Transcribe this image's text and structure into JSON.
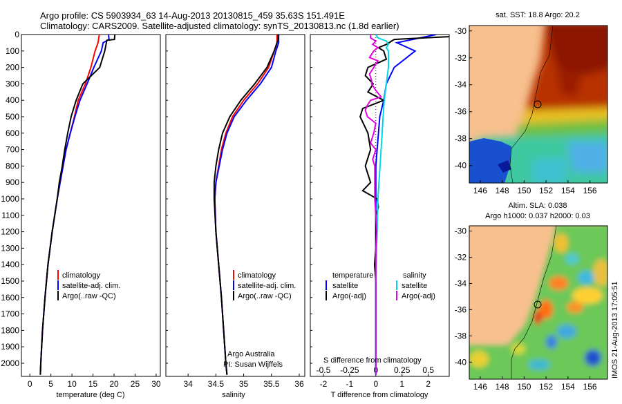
{
  "title_line1": "Argo profile: CS 5903934_63 14-Aug-2013 20130815_459 35.63S 151.491E",
  "title_line2": "Climatology: CARS2009. Satellite-adjusted climatology: synTS_20130813.nc (1.8d earlier)",
  "watermark": "IMOS 21-Aug-2013 17:05:51",
  "map_sst_title": "sat. SST: 18.8 Argo: 20.2",
  "map_sla_title1": "Altim. SLA: 0.038",
  "map_sla_title2": "Argo h1000: 0.037 h2000: 0.03",
  "colors": {
    "climatology": "#ff0000",
    "satellite": "#0000ff",
    "argo": "#000000",
    "salinity_satellite": "#00d8e8",
    "salinity_argo": "#e000e0",
    "land": "#f7c08e"
  },
  "maps": {
    "x_ticks": [
      "146",
      "148",
      "150",
      "152",
      "154",
      "156"
    ],
    "y_ticks": [
      "-30",
      "-32",
      "-34",
      "-36",
      "-38",
      "-40"
    ],
    "argo_position": {
      "lon": 151.491,
      "lat": -35.63
    }
  },
  "chart_data": [
    {
      "type": "line",
      "xlabel": "temperature (deg C)",
      "ylabel": "",
      "xlim": [
        -2,
        31
      ],
      "ylim": [
        2080,
        0
      ],
      "x_ticks": [
        "0",
        "5",
        "10",
        "15",
        "20",
        "25",
        "30"
      ],
      "y_ticks": [
        "0",
        "100",
        "200",
        "300",
        "400",
        "500",
        "600",
        "700",
        "800",
        "900",
        "1000",
        "1100",
        "1200",
        "1300",
        "1400",
        "1500",
        "1600",
        "1700",
        "1800",
        "1900",
        "2000"
      ],
      "legend": [
        "climatology",
        "satellite-adj. clim.",
        "Argo(..raw -QC)"
      ],
      "series": [
        {
          "name": "climatology",
          "depth": [
            0,
            50,
            100,
            200,
            300,
            400,
            500,
            600,
            700,
            800,
            900,
            1000,
            1200,
            1400,
            1600,
            1800,
            2000,
            2070
          ],
          "values": [
            16.5,
            16.2,
            15.5,
            14.5,
            13.2,
            11.5,
            10.6,
            9.6,
            8.6,
            7.9,
            7.2,
            6.5,
            5.3,
            4.3,
            3.6,
            3.0,
            2.6,
            2.5
          ]
        },
        {
          "name": "satellite-adj. clim.",
          "depth": [
            0,
            30,
            50,
            100,
            200,
            300,
            400,
            500,
            600,
            700,
            800,
            900,
            1000,
            1200,
            1400,
            1600,
            1800,
            2000,
            2070
          ],
          "values": [
            18.7,
            18.8,
            17.4,
            17.0,
            15.2,
            13.6,
            11.9,
            10.7,
            9.6,
            8.6,
            7.9,
            7.2,
            6.5,
            5.3,
            4.3,
            3.6,
            3.0,
            2.6,
            2.5
          ]
        },
        {
          "name": "Argo(..raw -QC)",
          "depth": [
            0,
            30,
            35,
            100,
            200,
            300,
            400,
            500,
            600,
            700,
            800,
            900,
            1000,
            1200,
            1400,
            1600,
            1800,
            2000,
            2070
          ],
          "values": [
            20.2,
            20.1,
            18.3,
            17.8,
            16.6,
            12.6,
            11.0,
            9.8,
            9.0,
            8.3,
            7.7,
            7.0,
            6.5,
            5.3,
            4.3,
            3.6,
            3.0,
            2.6,
            2.5
          ]
        }
      ]
    },
    {
      "type": "line",
      "xlabel": "salinity",
      "xlim": [
        33.6,
        36.1
      ],
      "ylim": [
        2080,
        0
      ],
      "x_ticks": [
        "34",
        "34.5",
        "35",
        "35.5",
        "36"
      ],
      "legend": [
        "climatology",
        "satellite-adj. clim.",
        "Argo(..raw -QC)"
      ],
      "annotation": [
        "Argo Australia",
        "PI: Susan Wijffels"
      ],
      "series": [
        {
          "name": "climatology",
          "depth": [
            0,
            50,
            100,
            200,
            300,
            400,
            500,
            600,
            700,
            800,
            900,
            1000,
            1200,
            1400,
            1600,
            1800,
            2000,
            2070
          ],
          "values": [
            35.6,
            35.6,
            35.55,
            35.45,
            35.25,
            35.0,
            34.8,
            34.68,
            34.6,
            34.55,
            34.5,
            34.48,
            34.5,
            34.55,
            34.6,
            34.64,
            34.68,
            34.7
          ]
        },
        {
          "name": "satellite-adj. clim.",
          "depth": [
            0,
            50,
            100,
            200,
            300,
            400,
            500,
            600,
            700,
            800,
            900,
            1000,
            1200,
            1400,
            1600,
            1800,
            2000,
            2070
          ],
          "values": [
            35.63,
            35.63,
            35.58,
            35.5,
            35.3,
            35.05,
            34.83,
            34.7,
            34.62,
            34.56,
            34.5,
            34.48,
            34.5,
            34.55,
            34.6,
            34.64,
            34.68,
            34.7
          ]
        },
        {
          "name": "Argo(..raw -QC)",
          "depth": [
            0,
            30,
            50,
            100,
            200,
            300,
            400,
            500,
            600,
            700,
            800,
            900,
            1000,
            1200,
            1400,
            1600,
            1800,
            2000,
            2070
          ],
          "values": [
            35.62,
            35.62,
            35.6,
            35.55,
            35.42,
            35.2,
            34.95,
            34.75,
            34.62,
            34.55,
            34.5,
            34.47,
            34.47,
            34.5,
            34.55,
            34.6,
            34.64,
            34.68,
            34.7
          ]
        }
      ]
    },
    {
      "type": "line",
      "xlabel": "T difference from climatology",
      "xlabel_top": "S difference from climatology",
      "xlim": [
        -2.5,
        2.8
      ],
      "ylim": [
        2080,
        0
      ],
      "x_ticks": [
        "-2",
        "-1",
        "0",
        "1",
        "2"
      ],
      "s_ticks": [
        "-0.5",
        "-0.25",
        "0",
        "0.25",
        "0.5"
      ],
      "legend": {
        "temperature": [
          "temperature",
          "satellite",
          "Argo(-adj)"
        ],
        "salinity": [
          "salinity",
          "satellite",
          "Argo(-adj)"
        ]
      },
      "series": [
        {
          "name": "temperature satellite",
          "depth": [
            0,
            50,
            100,
            200,
            300,
            400,
            500,
            600,
            700,
            800,
            1000,
            1200,
            1500,
            2000,
            2070
          ],
          "values": [
            2.3,
            0.8,
            1.5,
            0.7,
            0.4,
            0.3,
            0.15,
            0.1,
            0.05,
            0.0,
            0.0,
            0.0,
            0.0,
            0.0,
            0.0
          ]
        },
        {
          "name": "temperature Argo(-adj)",
          "depth": [
            0,
            10,
            15,
            20,
            25,
            30,
            40,
            60,
            80,
            100,
            150,
            200,
            250,
            300,
            350,
            400,
            450,
            500,
            600,
            700,
            800,
            900,
            950,
            1000,
            1050,
            1100,
            1200,
            1300,
            1400,
            1500,
            1600,
            1700,
            1800,
            2000,
            2070
          ],
          "values": [
            3.7,
            3.3,
            2.5,
            1.9,
            1.3,
            0.7,
            0.6,
            0.4,
            0.1,
            0.3,
            0.4,
            -0.3,
            -0.4,
            -0.1,
            -0.3,
            0.3,
            -0.5,
            -0.6,
            -0.3,
            -0.2,
            -0.4,
            -0.2,
            -0.5,
            0.05,
            0.1,
            0.0,
            0.0,
            0.0,
            -0.05,
            0.0,
            0.0,
            0.0,
            0.0,
            0.0,
            0.0
          ]
        },
        {
          "name": "salinity satellite",
          "depth": [
            0,
            20,
            40,
            60,
            80,
            100,
            200,
            300,
            400,
            600,
            800,
            1000,
            1500,
            2000,
            2070
          ],
          "values": [
            0.0,
            0.02,
            0.1,
            0.12,
            0.1,
            0.12,
            0.12,
            0.1,
            0.08,
            0.06,
            0.04,
            0.02,
            0.0,
            0.0,
            0.0
          ]
        },
        {
          "name": "salinity Argo(-adj)",
          "depth": [
            0,
            20,
            40,
            60,
            80,
            100,
            140,
            160,
            200,
            240,
            280,
            300,
            340,
            380,
            400,
            430,
            460,
            500,
            540,
            600,
            660,
            700,
            760,
            800,
            900,
            1000,
            1100,
            1200,
            1300,
            1400,
            1500,
            1700,
            2000,
            2070
          ],
          "values": [
            -0.05,
            -0.05,
            0.0,
            -0.03,
            0.02,
            -0.02,
            -0.06,
            0.02,
            -0.02,
            -0.06,
            -0.04,
            -0.04,
            0.0,
            0.05,
            -0.05,
            -0.08,
            -0.1,
            -0.08,
            0.0,
            -0.02,
            -0.05,
            0.0,
            -0.03,
            -0.01,
            -0.01,
            -0.01,
            0.0,
            0.01,
            0.0,
            0.0,
            0.0,
            0.0,
            0.0,
            0.0
          ]
        }
      ]
    }
  ]
}
